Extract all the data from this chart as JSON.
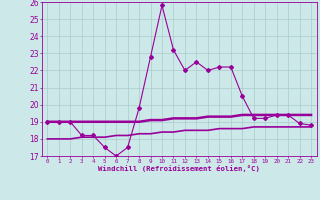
{
  "xlabel": "Windchill (Refroidissement éolien,°C)",
  "hours": [
    0,
    1,
    2,
    3,
    4,
    5,
    6,
    7,
    8,
    9,
    10,
    11,
    12,
    13,
    14,
    15,
    16,
    17,
    18,
    19,
    20,
    21,
    22,
    23
  ],
  "windchill": [
    19.0,
    19.0,
    19.0,
    18.2,
    18.2,
    17.5,
    17.0,
    17.5,
    19.8,
    22.8,
    25.8,
    23.2,
    22.0,
    22.5,
    22.0,
    22.2,
    22.2,
    20.5,
    19.2,
    19.2,
    19.4,
    19.4,
    18.9,
    18.8
  ],
  "line1": [
    19.0,
    19.0,
    19.0,
    19.0,
    19.0,
    19.0,
    19.0,
    19.0,
    19.0,
    19.1,
    19.1,
    19.2,
    19.2,
    19.2,
    19.3,
    19.3,
    19.3,
    19.4,
    19.4,
    19.4,
    19.4,
    19.4,
    19.4,
    19.4
  ],
  "line2": [
    18.0,
    18.0,
    18.0,
    18.1,
    18.1,
    18.1,
    18.2,
    18.2,
    18.3,
    18.3,
    18.4,
    18.4,
    18.5,
    18.5,
    18.5,
    18.6,
    18.6,
    18.6,
    18.7,
    18.7,
    18.7,
    18.7,
    18.7,
    18.7
  ],
  "ylim": [
    17,
    26
  ],
  "yticks": [
    17,
    18,
    19,
    20,
    21,
    22,
    23,
    24,
    25,
    26
  ],
  "line_color": "#990099",
  "bg_color": "#cce8e8",
  "grid_color": "#aacccc"
}
